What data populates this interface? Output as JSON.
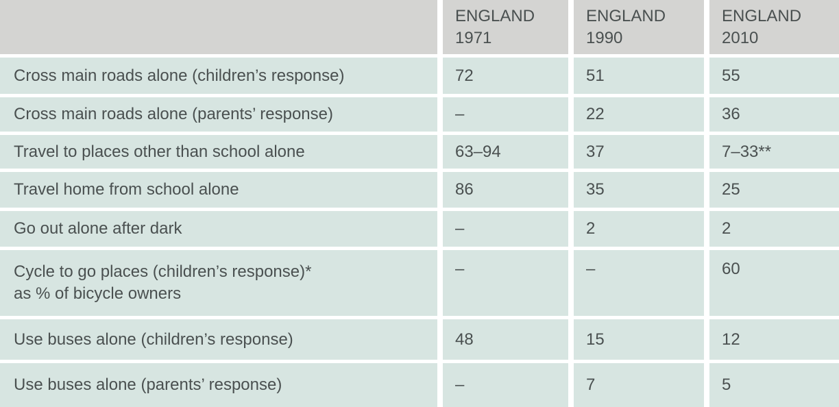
{
  "colors": {
    "header_bg": "#d4d4d2",
    "row_bg": "#d7e5e1",
    "text": "#4a5050",
    "separator": "#ffffff"
  },
  "chart_data": {
    "type": "table",
    "columns": [
      {
        "region": "ENGLAND",
        "year": "1971"
      },
      {
        "region": "ENGLAND",
        "year": "1990"
      },
      {
        "region": "ENGLAND",
        "year": "2010"
      }
    ],
    "rows": [
      {
        "label": "Cross main roads alone (children’s response)",
        "values": [
          "72",
          "51",
          "55"
        ]
      },
      {
        "label": "Cross main roads alone (parents’ response)",
        "values": [
          "–",
          "22",
          "36"
        ]
      },
      {
        "label": "Travel to places other than school alone",
        "values": [
          "63–94",
          "37",
          "7–33**"
        ]
      },
      {
        "label": "Travel home from school alone",
        "values": [
          "86",
          "35",
          "25"
        ]
      },
      {
        "label": "Go out alone after dark",
        "values": [
          "–",
          "2",
          "2"
        ]
      },
      {
        "label": "Cycle to go places (children’s response)*",
        "sublabel": "as % of bicycle owners",
        "values": [
          "–",
          "–",
          "60"
        ]
      },
      {
        "label": "Use buses alone (children’s response)",
        "values": [
          "48",
          "15",
          "12"
        ]
      },
      {
        "label": "Use buses alone (parents’ response)",
        "values": [
          "–",
          "7",
          "5"
        ]
      }
    ]
  }
}
